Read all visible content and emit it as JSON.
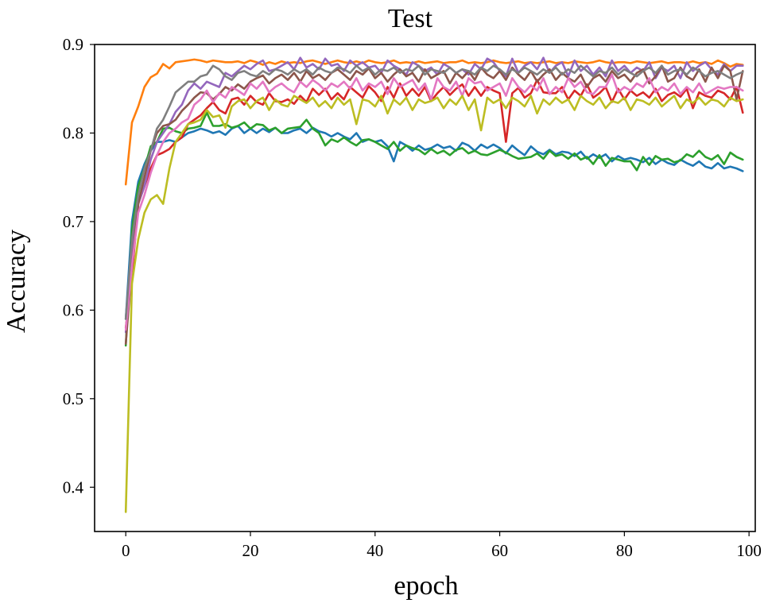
{
  "chart_data": {
    "type": "line",
    "title": "Test",
    "xlabel": "epoch",
    "ylabel": "Accuracy",
    "xlim": [
      -5,
      101
    ],
    "ylim": [
      0.35,
      0.9
    ],
    "xticks": [
      0,
      20,
      40,
      60,
      80,
      100
    ],
    "yticks": [
      0.4,
      0.5,
      0.6,
      0.7,
      0.8,
      0.9
    ],
    "grid": false,
    "legend": "none",
    "series": [
      {
        "color": "#1f77b4",
        "values": [
          0.59,
          0.7,
          0.745,
          0.765,
          0.78,
          0.79,
          0.79,
          0.792,
          0.79,
          0.795,
          0.8,
          0.802,
          0.805,
          0.803,
          0.8,
          0.802,
          0.798,
          0.805,
          0.808,
          0.8,
          0.805,
          0.8,
          0.805,
          0.801,
          0.806,
          0.8,
          0.8,
          0.803,
          0.805,
          0.8,
          0.806,
          0.802,
          0.8,
          0.796,
          0.8,
          0.796,
          0.793,
          0.8,
          0.79,
          0.793,
          0.79,
          0.792,
          0.785,
          0.768,
          0.79,
          0.786,
          0.78,
          0.786,
          0.781,
          0.783,
          0.787,
          0.783,
          0.785,
          0.78,
          0.789,
          0.786,
          0.78,
          0.787,
          0.783,
          0.787,
          0.783,
          0.777,
          0.786,
          0.78,
          0.775,
          0.785,
          0.779,
          0.776,
          0.781,
          0.776,
          0.779,
          0.778,
          0.774,
          0.779,
          0.771,
          0.776,
          0.772,
          0.776,
          0.768,
          0.774,
          0.77,
          0.772,
          0.77,
          0.767,
          0.772,
          0.765,
          0.77,
          0.766,
          0.764,
          0.77,
          0.766,
          0.763,
          0.768,
          0.762,
          0.76,
          0.766,
          0.76,
          0.762,
          0.76,
          0.757
        ]
      },
      {
        "color": "#ff7f0e",
        "values": [
          0.742,
          0.812,
          0.83,
          0.852,
          0.863,
          0.867,
          0.878,
          0.873,
          0.88,
          0.881,
          0.882,
          0.883,
          0.882,
          0.88,
          0.882,
          0.881,
          0.88,
          0.88,
          0.881,
          0.879,
          0.882,
          0.88,
          0.877,
          0.88,
          0.878,
          0.881,
          0.879,
          0.88,
          0.879,
          0.881,
          0.882,
          0.88,
          0.878,
          0.88,
          0.882,
          0.88,
          0.879,
          0.881,
          0.879,
          0.882,
          0.88,
          0.879,
          0.88,
          0.882,
          0.879,
          0.88,
          0.879,
          0.881,
          0.879,
          0.88,
          0.881,
          0.879,
          0.88,
          0.88,
          0.882,
          0.879,
          0.88,
          0.879,
          0.88,
          0.882,
          0.88,
          0.879,
          0.88,
          0.881,
          0.879,
          0.88,
          0.879,
          0.88,
          0.881,
          0.879,
          0.88,
          0.879,
          0.881,
          0.88,
          0.879,
          0.88,
          0.882,
          0.88,
          0.879,
          0.88,
          0.88,
          0.879,
          0.881,
          0.88,
          0.879,
          0.88,
          0.881,
          0.879,
          0.88,
          0.88,
          0.879,
          0.881,
          0.879,
          0.88,
          0.878,
          0.882,
          0.879,
          0.875,
          0.878,
          0.877
        ]
      },
      {
        "color": "#2ca02c",
        "values": [
          0.56,
          0.69,
          0.74,
          0.76,
          0.785,
          0.79,
          0.805,
          0.806,
          0.802,
          0.8,
          0.805,
          0.806,
          0.808,
          0.823,
          0.808,
          0.808,
          0.81,
          0.806,
          0.808,
          0.812,
          0.805,
          0.81,
          0.809,
          0.803,
          0.806,
          0.8,
          0.805,
          0.806,
          0.807,
          0.815,
          0.805,
          0.8,
          0.786,
          0.793,
          0.79,
          0.795,
          0.79,
          0.786,
          0.792,
          0.793,
          0.79,
          0.786,
          0.782,
          0.79,
          0.78,
          0.786,
          0.783,
          0.781,
          0.776,
          0.782,
          0.777,
          0.78,
          0.775,
          0.781,
          0.783,
          0.777,
          0.78,
          0.776,
          0.775,
          0.778,
          0.781,
          0.778,
          0.774,
          0.771,
          0.772,
          0.773,
          0.777,
          0.771,
          0.78,
          0.774,
          0.776,
          0.771,
          0.777,
          0.77,
          0.773,
          0.765,
          0.775,
          0.763,
          0.772,
          0.77,
          0.768,
          0.768,
          0.758,
          0.773,
          0.764,
          0.774,
          0.77,
          0.771,
          0.767,
          0.769,
          0.776,
          0.773,
          0.78,
          0.773,
          0.77,
          0.775,
          0.765,
          0.778,
          0.773,
          0.77
        ]
      },
      {
        "color": "#d62728",
        "values": [
          0.58,
          0.64,
          0.72,
          0.74,
          0.76,
          0.775,
          0.778,
          0.782,
          0.79,
          0.795,
          0.81,
          0.815,
          0.82,
          0.828,
          0.835,
          0.826,
          0.822,
          0.838,
          0.84,
          0.832,
          0.842,
          0.835,
          0.832,
          0.845,
          0.836,
          0.835,
          0.838,
          0.833,
          0.842,
          0.835,
          0.85,
          0.843,
          0.85,
          0.838,
          0.845,
          0.838,
          0.852,
          0.846,
          0.84,
          0.853,
          0.846,
          0.836,
          0.852,
          0.84,
          0.856,
          0.842,
          0.85,
          0.842,
          0.852,
          0.836,
          0.845,
          0.852,
          0.843,
          0.85,
          0.855,
          0.842,
          0.852,
          0.842,
          0.852,
          0.848,
          0.845,
          0.79,
          0.845,
          0.851,
          0.84,
          0.845,
          0.86,
          0.846,
          0.845,
          0.845,
          0.852,
          0.838,
          0.848,
          0.842,
          0.855,
          0.84,
          0.845,
          0.852,
          0.835,
          0.85,
          0.838,
          0.848,
          0.842,
          0.846,
          0.84,
          0.85,
          0.836,
          0.843,
          0.846,
          0.841,
          0.85,
          0.828,
          0.846,
          0.842,
          0.84,
          0.848,
          0.845,
          0.838,
          0.852,
          0.823
        ]
      },
      {
        "color": "#9467bd",
        "values": [
          0.575,
          0.665,
          0.72,
          0.74,
          0.77,
          0.79,
          0.8,
          0.81,
          0.824,
          0.832,
          0.848,
          0.856,
          0.85,
          0.858,
          0.855,
          0.852,
          0.868,
          0.864,
          0.87,
          0.876,
          0.872,
          0.878,
          0.882,
          0.87,
          0.872,
          0.876,
          0.88,
          0.872,
          0.885,
          0.874,
          0.878,
          0.872,
          0.884,
          0.876,
          0.878,
          0.87,
          0.882,
          0.876,
          0.88,
          0.874,
          0.876,
          0.868,
          0.882,
          0.876,
          0.872,
          0.866,
          0.88,
          0.876,
          0.87,
          0.874,
          0.866,
          0.878,
          0.874,
          0.868,
          0.872,
          0.866,
          0.878,
          0.872,
          0.884,
          0.88,
          0.87,
          0.864,
          0.884,
          0.868,
          0.876,
          0.88,
          0.872,
          0.885,
          0.868,
          0.876,
          0.88,
          0.864,
          0.882,
          0.87,
          0.876,
          0.866,
          0.874,
          0.864,
          0.882,
          0.87,
          0.876,
          0.868,
          0.874,
          0.87,
          0.88,
          0.862,
          0.874,
          0.87,
          0.876,
          0.862,
          0.88,
          0.87,
          0.876,
          0.88,
          0.872,
          0.866,
          0.878,
          0.87,
          0.876,
          0.876
        ]
      },
      {
        "color": "#8c564b",
        "values": [
          0.562,
          0.65,
          0.72,
          0.75,
          0.78,
          0.8,
          0.808,
          0.81,
          0.815,
          0.825,
          0.832,
          0.84,
          0.846,
          0.845,
          0.838,
          0.844,
          0.852,
          0.848,
          0.855,
          0.85,
          0.858,
          0.862,
          0.865,
          0.856,
          0.862,
          0.866,
          0.86,
          0.868,
          0.858,
          0.87,
          0.862,
          0.866,
          0.86,
          0.868,
          0.872,
          0.866,
          0.86,
          0.87,
          0.866,
          0.873,
          0.862,
          0.868,
          0.858,
          0.866,
          0.872,
          0.864,
          0.868,
          0.858,
          0.872,
          0.862,
          0.866,
          0.87,
          0.856,
          0.868,
          0.862,
          0.87,
          0.86,
          0.874,
          0.866,
          0.862,
          0.87,
          0.86,
          0.874,
          0.866,
          0.86,
          0.87,
          0.858,
          0.866,
          0.872,
          0.86,
          0.868,
          0.862,
          0.858,
          0.866,
          0.852,
          0.862,
          0.866,
          0.858,
          0.87,
          0.862,
          0.866,
          0.858,
          0.868,
          0.872,
          0.856,
          0.864,
          0.876,
          0.858,
          0.862,
          0.874,
          0.864,
          0.86,
          0.872,
          0.858,
          0.874,
          0.862,
          0.876,
          0.87,
          0.838,
          0.87
        ]
      },
      {
        "color": "#e377c2",
        "values": [
          0.578,
          0.65,
          0.71,
          0.73,
          0.755,
          0.775,
          0.79,
          0.8,
          0.805,
          0.812,
          0.816,
          0.832,
          0.838,
          0.848,
          0.835,
          0.845,
          0.84,
          0.852,
          0.848,
          0.843,
          0.856,
          0.85,
          0.858,
          0.846,
          0.852,
          0.856,
          0.85,
          0.846,
          0.858,
          0.852,
          0.86,
          0.855,
          0.848,
          0.856,
          0.852,
          0.858,
          0.85,
          0.862,
          0.848,
          0.856,
          0.852,
          0.858,
          0.844,
          0.862,
          0.852,
          0.856,
          0.86,
          0.848,
          0.856,
          0.838,
          0.862,
          0.852,
          0.848,
          0.858,
          0.842,
          0.862,
          0.856,
          0.858,
          0.848,
          0.852,
          0.856,
          0.842,
          0.862,
          0.852,
          0.846,
          0.854,
          0.848,
          0.862,
          0.844,
          0.852,
          0.846,
          0.862,
          0.852,
          0.858,
          0.846,
          0.844,
          0.852,
          0.852,
          0.866,
          0.846,
          0.852,
          0.848,
          0.856,
          0.852,
          0.862,
          0.846,
          0.852,
          0.848,
          0.856,
          0.844,
          0.852,
          0.846,
          0.856,
          0.844,
          0.848,
          0.852,
          0.85,
          0.852,
          0.852,
          0.848
        ]
      },
      {
        "color": "#7f7f7f",
        "values": [
          0.59,
          0.68,
          0.73,
          0.76,
          0.78,
          0.805,
          0.815,
          0.83,
          0.846,
          0.852,
          0.858,
          0.858,
          0.864,
          0.866,
          0.876,
          0.872,
          0.864,
          0.86,
          0.868,
          0.87,
          0.866,
          0.864,
          0.87,
          0.866,
          0.872,
          0.87,
          0.866,
          0.872,
          0.868,
          0.872,
          0.866,
          0.874,
          0.87,
          0.868,
          0.874,
          0.872,
          0.868,
          0.876,
          0.87,
          0.874,
          0.866,
          0.872,
          0.87,
          0.874,
          0.868,
          0.872,
          0.87,
          0.876,
          0.866,
          0.872,
          0.87,
          0.868,
          0.874,
          0.868,
          0.872,
          0.87,
          0.866,
          0.874,
          0.87,
          0.876,
          0.872,
          0.866,
          0.872,
          0.868,
          0.874,
          0.87,
          0.866,
          0.872,
          0.868,
          0.874,
          0.866,
          0.872,
          0.868,
          0.876,
          0.87,
          0.864,
          0.87,
          0.868,
          0.874,
          0.866,
          0.872,
          0.868,
          0.864,
          0.87,
          0.874,
          0.868,
          0.876,
          0.866,
          0.87,
          0.872,
          0.866,
          0.874,
          0.87,
          0.864,
          0.868,
          0.87,
          0.866,
          0.862,
          0.866,
          0.869
        ]
      },
      {
        "color": "#bcbd22",
        "values": [
          0.372,
          0.63,
          0.68,
          0.71,
          0.725,
          0.73,
          0.72,
          0.76,
          0.79,
          0.8,
          0.81,
          0.812,
          0.815,
          0.826,
          0.818,
          0.82,
          0.806,
          0.83,
          0.836,
          0.838,
          0.828,
          0.836,
          0.84,
          0.826,
          0.838,
          0.832,
          0.83,
          0.842,
          0.838,
          0.834,
          0.84,
          0.83,
          0.836,
          0.828,
          0.84,
          0.832,
          0.838,
          0.81,
          0.838,
          0.836,
          0.83,
          0.842,
          0.822,
          0.838,
          0.832,
          0.84,
          0.826,
          0.838,
          0.834,
          0.836,
          0.84,
          0.828,
          0.838,
          0.832,
          0.842,
          0.826,
          0.838,
          0.803,
          0.84,
          0.834,
          0.838,
          0.828,
          0.84,
          0.836,
          0.83,
          0.842,
          0.822,
          0.838,
          0.832,
          0.84,
          0.834,
          0.838,
          0.826,
          0.842,
          0.836,
          0.832,
          0.84,
          0.828,
          0.836,
          0.834,
          0.84,
          0.826,
          0.838,
          0.836,
          0.832,
          0.84,
          0.83,
          0.836,
          0.842,
          0.828,
          0.838,
          0.834,
          0.84,
          0.832,
          0.838,
          0.836,
          0.83,
          0.84,
          0.836,
          0.838
        ]
      }
    ]
  }
}
